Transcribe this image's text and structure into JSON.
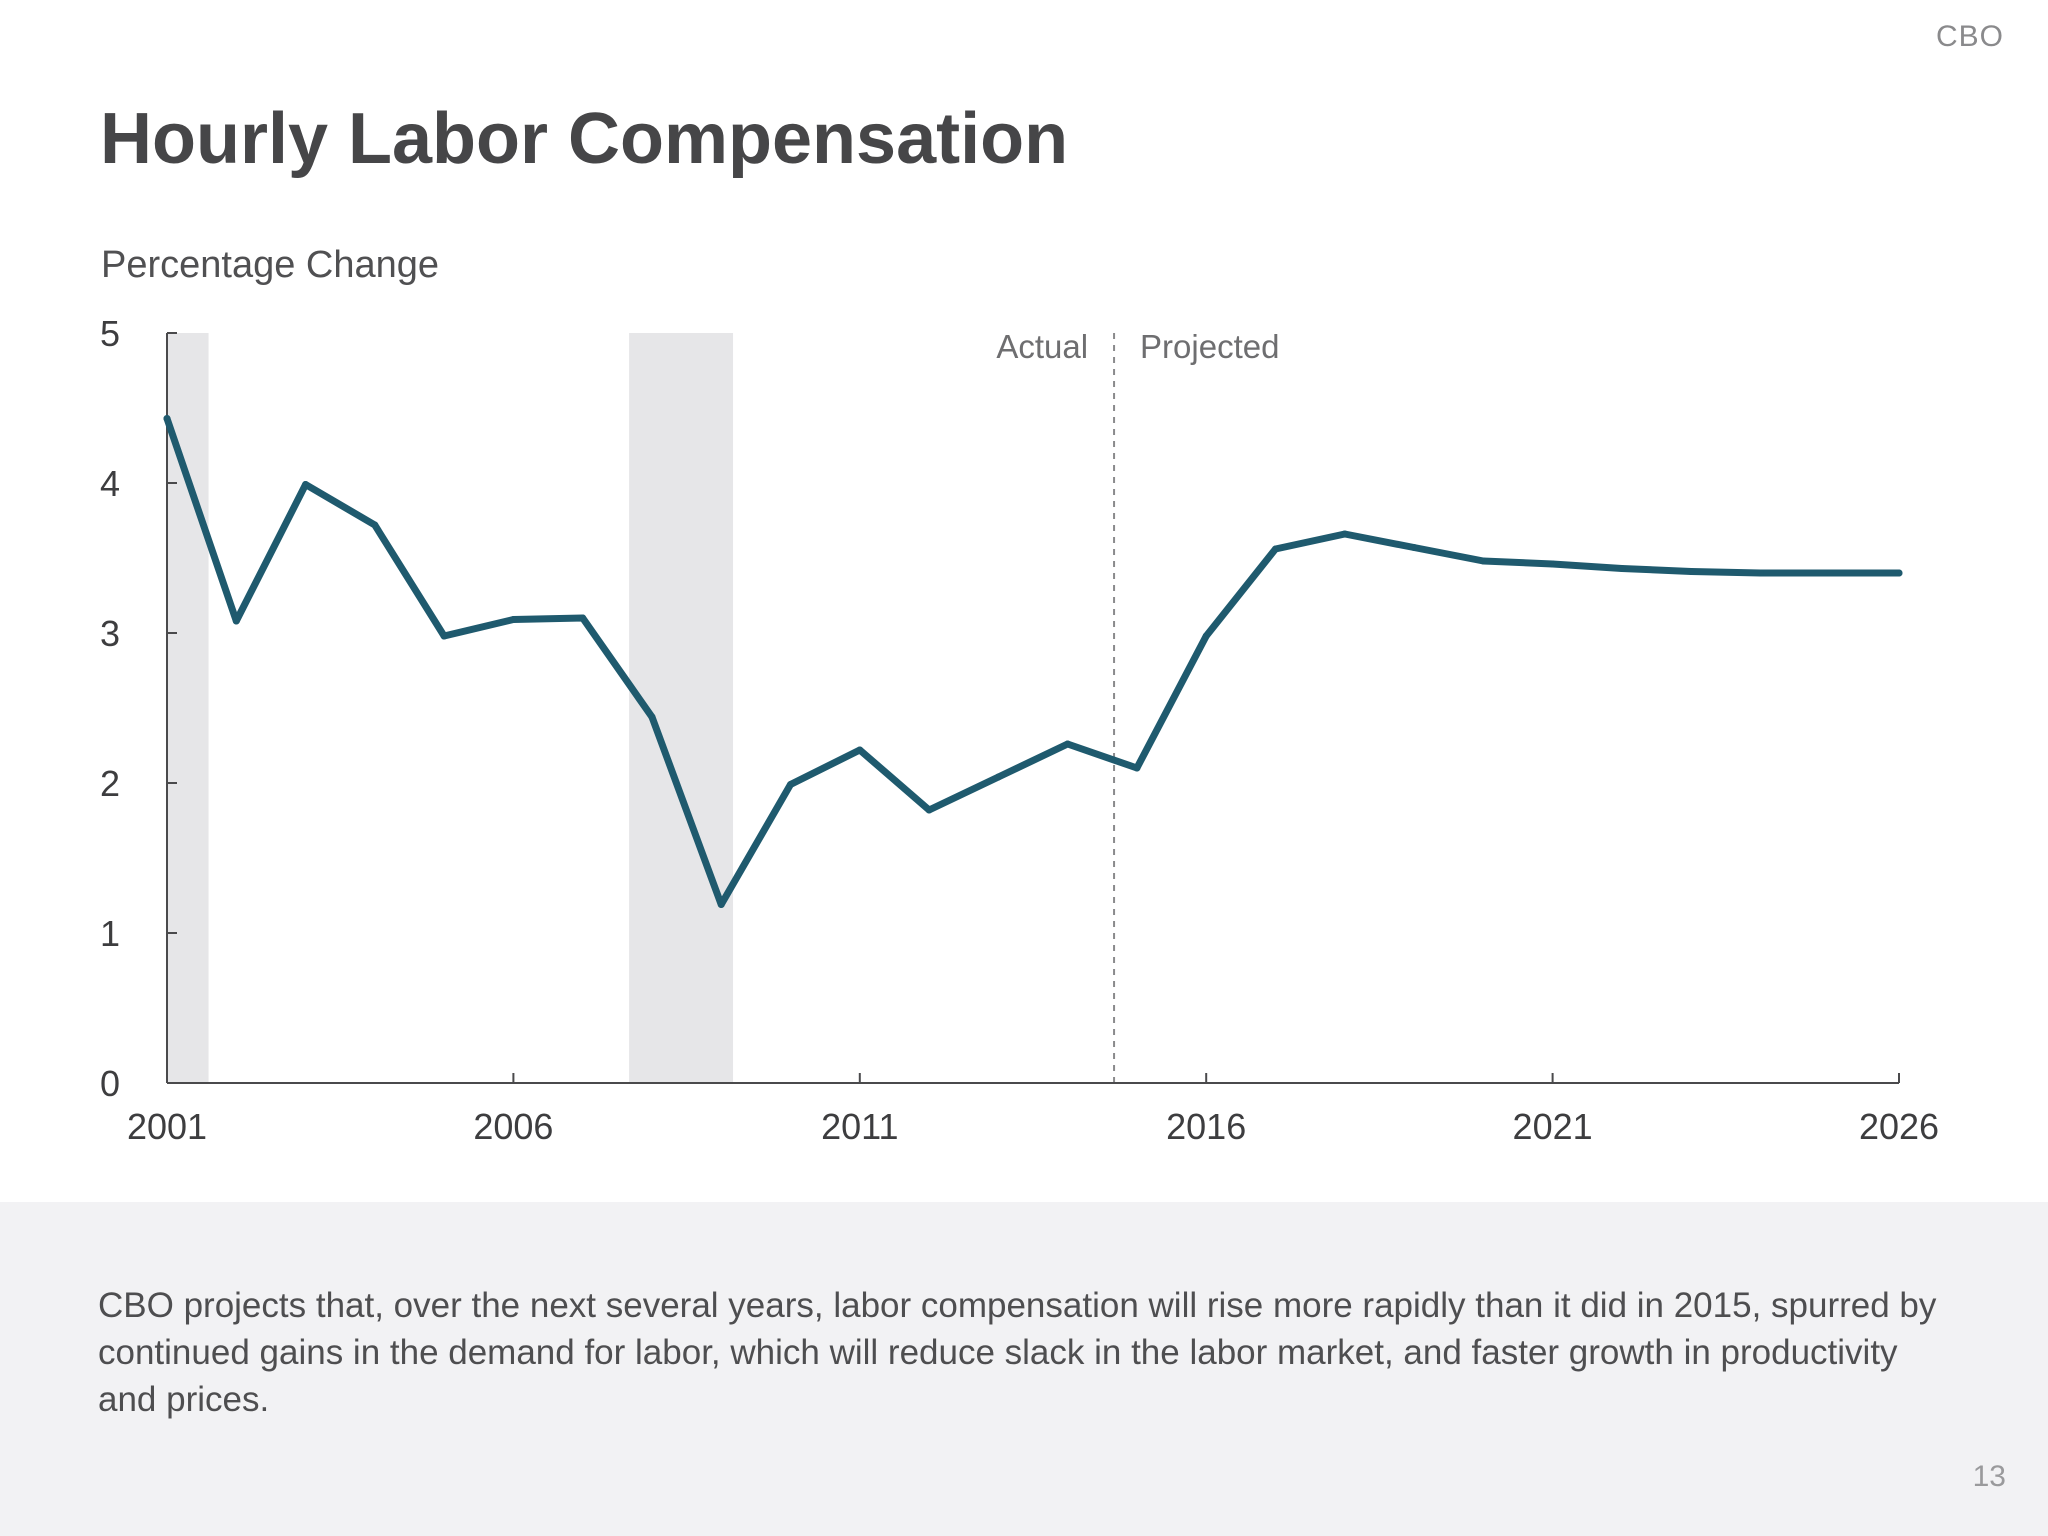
{
  "header": {
    "brand": "CBO",
    "title": "Hourly Labor Compensation"
  },
  "chart_data": {
    "type": "line",
    "title": "Hourly Labor Compensation",
    "ylabel": "Percentage Change",
    "xlabel": "",
    "xlim": [
      2001,
      2026
    ],
    "ylim": [
      0,
      5
    ],
    "x_ticks": [
      "2001",
      "2006",
      "2011",
      "2016",
      "2021",
      "2026"
    ],
    "y_ticks": [
      "0",
      "1",
      "2",
      "3",
      "4",
      "5"
    ],
    "grid": false,
    "line_color": "#1f5a6e",
    "recession_color": "#e6e6e8",
    "recessions": [
      [
        2001,
        2001.6
      ],
      [
        2007.67,
        2009.17
      ]
    ],
    "divider_x": 2014.67,
    "annotations": {
      "left": "Actual",
      "right": "Projected"
    },
    "series": [
      {
        "x": [
          2001,
          2002,
          2003,
          2004,
          2005,
          2006,
          2007,
          2008,
          2009,
          2010,
          2011,
          2012,
          2013,
          2014,
          2015,
          2016,
          2017,
          2018,
          2019,
          2020,
          2021,
          2022,
          2023,
          2024,
          2025,
          2026
        ],
        "values": [
          4.43,
          3.08,
          3.99,
          3.72,
          2.98,
          3.09,
          3.1,
          2.44,
          1.19,
          1.99,
          2.22,
          1.82,
          2.04,
          2.26,
          2.1,
          2.98,
          3.56,
          3.66,
          3.57,
          3.48,
          3.46,
          3.43,
          3.41,
          3.4,
          3.4,
          3.4
        ]
      }
    ]
  },
  "footer": {
    "text": "CBO projects that, over the next several years, labor compensation will rise more rapidly than it did in 2015, spurred by continued gains in the demand for labor, which will reduce slack in the labor market, and faster growth in productivity and prices.",
    "page_number": "13"
  }
}
